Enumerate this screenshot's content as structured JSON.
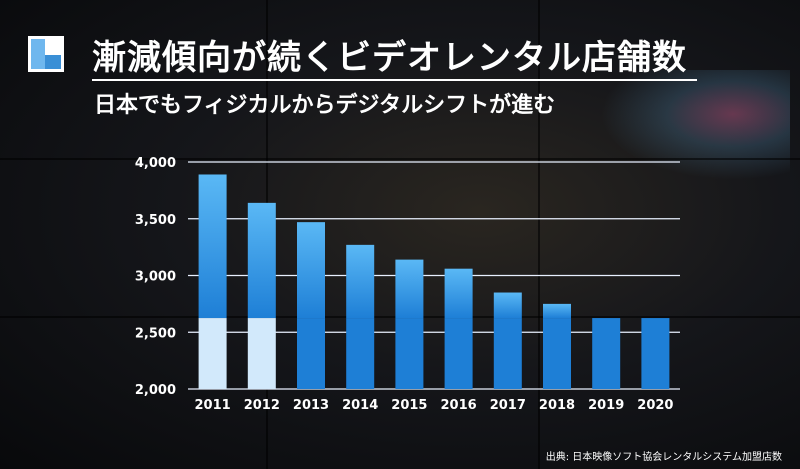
{
  "header": {
    "title": "漸減傾向が続くビデオレンタル店舗数",
    "subtitle": "日本でもフィジカルからデジタルシフトが進む"
  },
  "source": "出典: 日本映像ソフト協会レンタルシステム加盟店数",
  "colors": {
    "bar_top": "#5ab8f5",
    "bar_bottom": "#1e7fd6",
    "bar_lower_segment": "#d2e9fb",
    "gridline": "#e8f0ff",
    "text": "#ffffff"
  },
  "chart_data": {
    "type": "bar",
    "title": "",
    "xlabel": "",
    "ylabel": "",
    "categories": [
      "2011",
      "2012",
      "2013",
      "2014",
      "2015",
      "2016",
      "2017",
      "2018",
      "2019",
      "2020"
    ],
    "values": [
      3890,
      3640,
      3470,
      3270,
      3140,
      3060,
      2850,
      2750,
      2610,
      2550
    ],
    "ylim": [
      2000,
      4000
    ],
    "yticks": [
      2000,
      2500,
      3000,
      3500,
      4000
    ],
    "ytick_labels": [
      "2,000",
      "2,500",
      "3,000",
      "3,500",
      "4,000"
    ],
    "grid": true,
    "legend": "none"
  }
}
